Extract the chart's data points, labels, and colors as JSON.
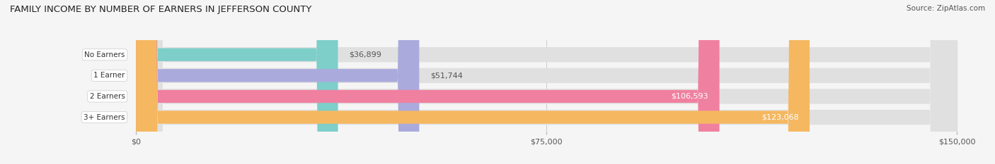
{
  "title": "FAMILY INCOME BY NUMBER OF EARNERS IN JEFFERSON COUNTY",
  "source": "Source: ZipAtlas.com",
  "categories": [
    "No Earners",
    "1 Earner",
    "2 Earners",
    "3+ Earners"
  ],
  "values": [
    36899,
    51744,
    106593,
    123068
  ],
  "bar_colors": [
    "#7ececa",
    "#aaaadd",
    "#f080a0",
    "#f5b860"
  ],
  "bar_bg_color": "#e8e8e8",
  "background_color": "#f5f5f5",
  "xlim": [
    0,
    150000
  ],
  "xticks": [
    0,
    75000,
    150000
  ],
  "xtick_labels": [
    "$0",
    "$75,000",
    "$150,000"
  ],
  "label_color_dark": "#555555",
  "label_color_light": "#ffffff",
  "value_threshold": 80000
}
